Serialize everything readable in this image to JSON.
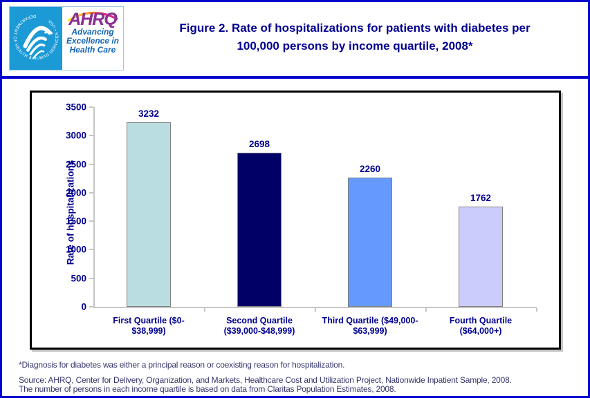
{
  "header": {
    "logo": {
      "hhs_circle_text": "DEPARTMENT OF HEALTH & HUMAN SERVICES • USA",
      "ahrq_acronym": "AHRQ",
      "tagline_line1": "Advancing",
      "tagline_line2": "Excellence in",
      "tagline_line3": "Health Care"
    },
    "title_line1": "Figure 2. Rate of hospitalizations for patients with diabetes per",
    "title_line2": "100,000 persons by income quartile, 2008*"
  },
  "chart_data": {
    "type": "bar",
    "title": "Figure 2. Rate of hospitalizations for patients with diabetes per 100,000 persons by income quartile, 2008*",
    "xlabel": "",
    "ylabel": "Rate of hospitalizations",
    "ylim": [
      0,
      3500
    ],
    "yticks": [
      0,
      500,
      1000,
      1500,
      2000,
      2500,
      3000,
      3500
    ],
    "grid": false,
    "legend_position": "none",
    "categories": [
      "First Quartile ($0-$38,999)",
      "Second Quartile ($39,000-$48,999)",
      "Third Quartile ($49,000-$63,999)",
      "Fourth Quartile ($64,000+)"
    ],
    "category_label_lines": [
      [
        "First Quartile ($0-",
        "$38,999)"
      ],
      [
        "Second Quartile",
        "($39,000-$48,999)"
      ],
      [
        "Third Quartile ($49,000-",
        "$63,999)"
      ],
      [
        "Fourth Quartile",
        "($64,000+)"
      ]
    ],
    "values": [
      3232,
      2698,
      2260,
      1762
    ],
    "bar_colors": [
      "#b9dde0",
      "#000066",
      "#6699fc",
      "#ccccfc"
    ]
  },
  "footnotes": {
    "line1": "*Diagnosis for diabetes was either a principal reason or coexisting reason for hospitalization.",
    "line2": "Source: AHRQ, Center for Delivery, Organization, and Markets, Healthcare Cost and Utilization Project, Nationwide Inpatient Sample, 2008.",
    "line3": "The number of persons in each income quartile is based on data from Claritas Population Estimates, 2008."
  },
  "colors": {
    "page_border": "#0101cd",
    "navy_text": "#00008f",
    "hhs_block": "#1b9ad6",
    "ahrq_purple": "#8b3094",
    "tagline_blue": "#1464b4",
    "axis_line": "#c6c6c6",
    "footer_text": "#34346c"
  }
}
